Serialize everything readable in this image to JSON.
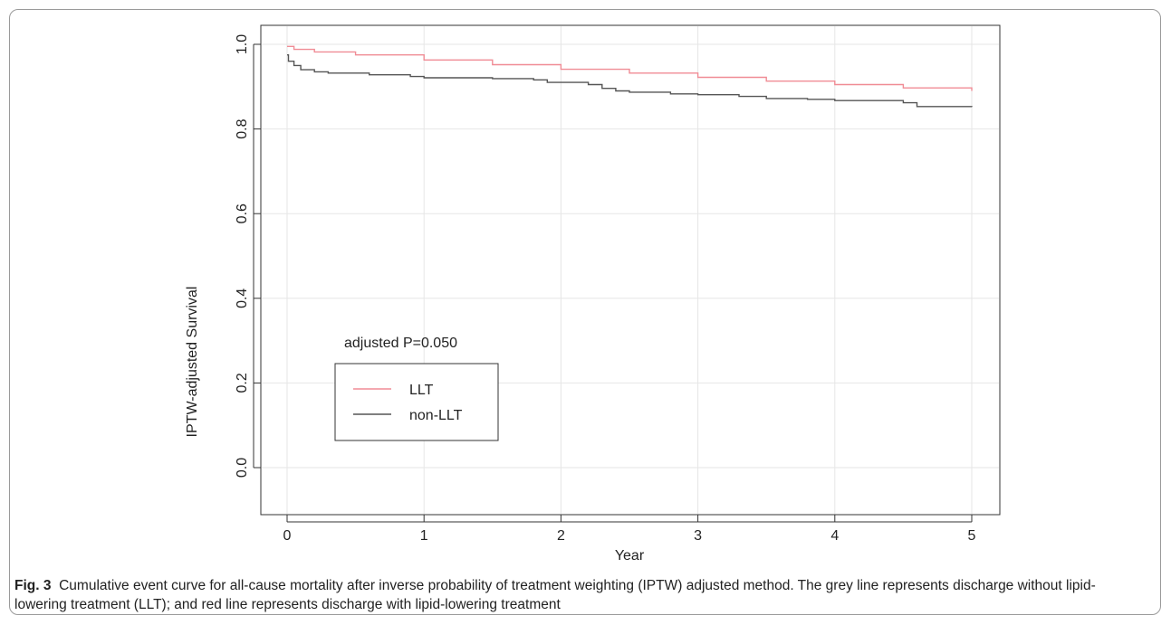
{
  "figure": {
    "label": "Fig. 3",
    "caption": "Cumulative event curve for all-cause mortality after inverse probability of treatment weighting (IPTW) adjusted method. The grey line represents discharge without lipid-lowering treatment (LLT); and red line represents discharge with lipid-lowering treatment"
  },
  "chart_data": {
    "type": "line",
    "xlabel": "Year",
    "ylabel": "IPTW-adjusted Survival",
    "xlim": [
      0,
      5
    ],
    "ylim": [
      0,
      1
    ],
    "xticks": [
      "0",
      "1",
      "2",
      "3",
      "4",
      "5"
    ],
    "yticks": [
      "0.0",
      "0.2",
      "0.4",
      "0.6",
      "0.8",
      "1.0"
    ],
    "grid": true,
    "annotation": "adjusted P=0.050",
    "legend_position": "bottom-left",
    "colors": {
      "LLT": "#f08c95",
      "non-LLT": "#555555"
    },
    "series": [
      {
        "name": "LLT",
        "x": [
          0,
          0.05,
          0.2,
          0.5,
          1.0,
          1.5,
          2.0,
          2.5,
          3.0,
          3.5,
          4.0,
          4.5,
          5.0
        ],
        "y": [
          0.995,
          0.988,
          0.982,
          0.975,
          0.963,
          0.952,
          0.941,
          0.932,
          0.922,
          0.913,
          0.905,
          0.897,
          0.89
        ]
      },
      {
        "name": "non-LLT",
        "x": [
          0,
          0.01,
          0.05,
          0.1,
          0.2,
          0.3,
          0.6,
          0.9,
          1.0,
          1.5,
          1.8,
          1.9,
          2.2,
          2.3,
          2.4,
          2.5,
          2.8,
          3.0,
          3.3,
          3.5,
          3.8,
          4.0,
          4.5,
          4.6,
          5.0
        ],
        "y": [
          0.975,
          0.96,
          0.95,
          0.94,
          0.935,
          0.932,
          0.928,
          0.924,
          0.921,
          0.919,
          0.916,
          0.91,
          0.905,
          0.896,
          0.89,
          0.887,
          0.883,
          0.881,
          0.877,
          0.872,
          0.87,
          0.867,
          0.862,
          0.853,
          0.852
        ]
      }
    ]
  }
}
